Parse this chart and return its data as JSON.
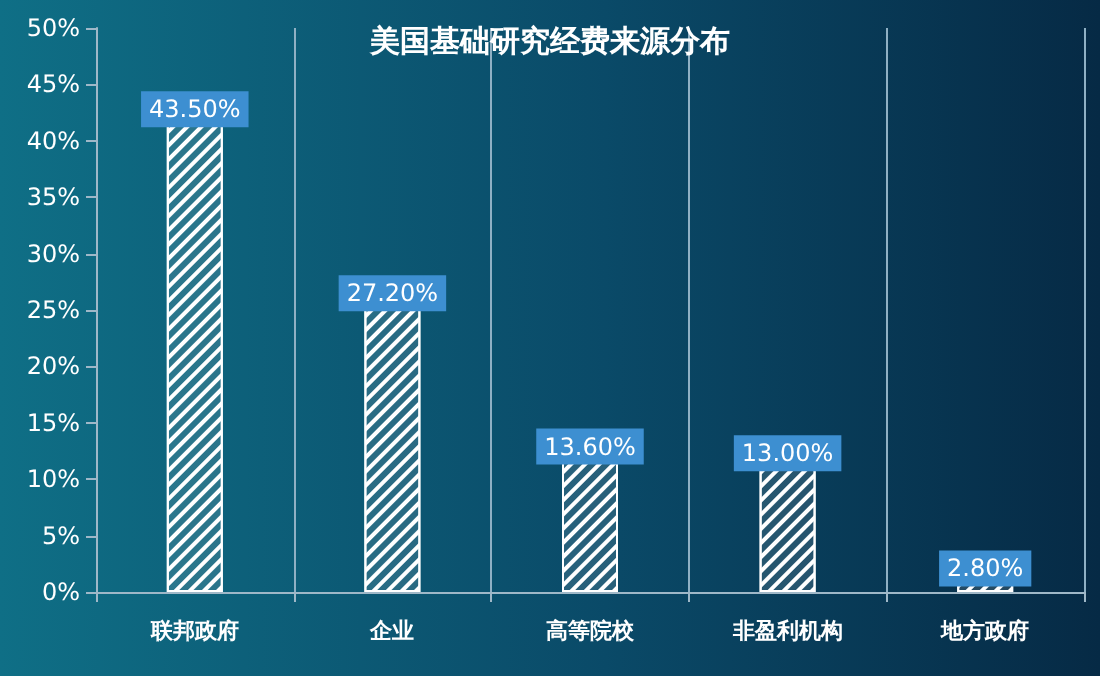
{
  "chart_data": {
    "type": "bar",
    "title": "美国基础研究经费来源分布",
    "categories": [
      "联邦政府",
      "企业",
      "高等院校",
      "非盈利机构",
      "地方政府"
    ],
    "values": [
      43.5,
      27.2,
      13.6,
      13.0,
      2.8
    ],
    "value_labels": [
      "43.50%",
      "27.20%",
      "13.60%",
      "13.00%",
      "2.80%"
    ],
    "color": "#ffffff",
    "ylim": [
      0,
      50
    ],
    "yticks": [
      {
        "value": 0,
        "label": "0%"
      },
      {
        "value": 5,
        "label": "5%"
      },
      {
        "value": 10,
        "label": "10%"
      },
      {
        "value": 15,
        "label": "15%"
      },
      {
        "value": 20,
        "label": "20%"
      },
      {
        "value": 25,
        "label": "25%"
      },
      {
        "value": 30,
        "label": "30%"
      },
      {
        "value": 35,
        "label": "35%"
      },
      {
        "value": 40,
        "label": "40%"
      },
      {
        "value": 45,
        "label": "45%"
      },
      {
        "value": 50,
        "label": "50%"
      }
    ],
    "grid": "x"
  }
}
